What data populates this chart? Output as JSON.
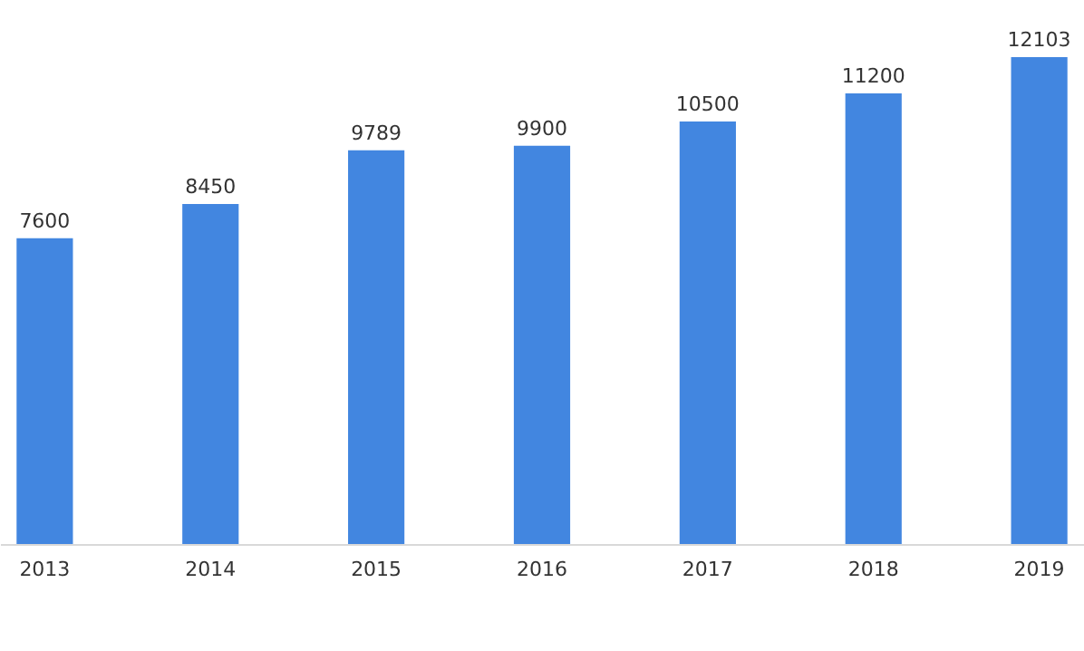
{
  "chart_data": {
    "type": "bar",
    "categories": [
      "2013",
      "2014",
      "2015",
      "2016",
      "2017",
      "2018",
      "2019"
    ],
    "values": [
      7600,
      8450,
      9789,
      9900,
      10500,
      11200,
      12103
    ],
    "color": "#4286e0",
    "data_labels": true,
    "grid": false
  }
}
